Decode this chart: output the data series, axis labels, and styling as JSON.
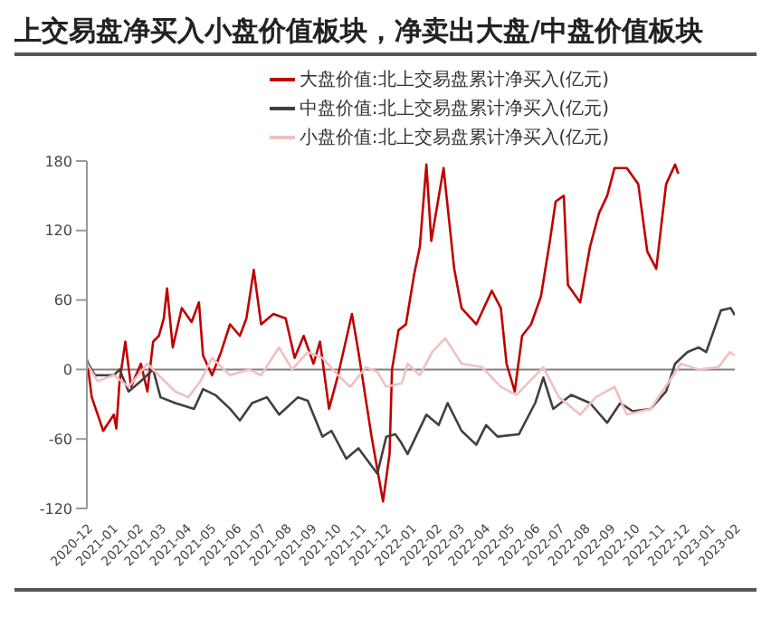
{
  "chart_data": {
    "type": "line",
    "title": "上交易盘净买入小盘价值板块，净卖出大盘/中盘价值板块",
    "legend": "top",
    "grid": false,
    "marker": "none",
    "line_style": "solid",
    "xlim": [
      "2020-12-01",
      "2023-02-01"
    ],
    "xticks": [
      "2020-12",
      "2021-01",
      "2021-02",
      "2021-03",
      "2021-04",
      "2021-05",
      "2021-06",
      "2021-07",
      "2021-08",
      "2021-09",
      "2021-10",
      "2021-11",
      "2021-12",
      "2022-01",
      "2022-02",
      "2022-03",
      "2022-04",
      "2022-05",
      "2022-06",
      "2022-07",
      "2022-08",
      "2022-09",
      "2022-10",
      "2022-11",
      "2022-12",
      "2023-01",
      "2023-02"
    ],
    "ylim": [
      -120,
      180
    ],
    "yticks": [
      -120,
      -60,
      0,
      60,
      120,
      180
    ],
    "ref_lines": [
      {
        "axis": "y",
        "value": 0,
        "color": "#808080"
      }
    ],
    "series": [
      {
        "name": "大盘价值:北上交易盘累计净买入(亿元)",
        "color": "#c00000",
        "x": [
          "2020-12-01",
          "2020-12-07",
          "2020-12-21",
          "2021-01-03",
          "2021-01-06",
          "2021-01-10",
          "2021-01-17",
          "2021-01-24",
          "2021-02-05",
          "2021-02-13",
          "2021-02-20",
          "2021-02-27",
          "2021-03-05",
          "2021-03-09",
          "2021-03-16",
          "2021-03-27",
          "2021-04-08",
          "2021-04-17",
          "2021-04-22",
          "2021-05-03",
          "2021-05-14",
          "2021-05-25",
          "2021-06-06",
          "2021-06-14",
          "2021-06-23",
          "2021-07-02",
          "2021-07-17",
          "2021-08-01",
          "2021-08-12",
          "2021-08-23",
          "2021-09-04",
          "2021-09-12",
          "2021-09-23",
          "2021-10-04",
          "2021-10-21",
          "2021-10-29",
          "2021-11-14",
          "2021-11-28",
          "2021-12-06",
          "2021-12-09",
          "2021-12-17",
          "2021-12-26",
          "2022-01-05",
          "2022-01-12",
          "2022-01-20",
          "2022-01-26",
          "2022-02-10",
          "2022-02-23",
          "2022-03-04",
          "2022-03-22",
          "2022-04-10",
          "2022-04-21",
          "2022-04-28",
          "2022-05-08",
          "2022-05-17",
          "2022-05-28",
          "2022-06-09",
          "2022-06-20",
          "2022-06-27",
          "2022-07-07",
          "2022-07-12",
          "2022-07-27",
          "2022-08-08",
          "2022-08-19",
          "2022-08-29",
          "2022-09-07",
          "2022-09-22",
          "2022-10-06",
          "2022-10-17",
          "2022-10-28",
          "2022-11-09",
          "2022-11-20",
          "2022-11-24"
        ],
        "values": [
          9,
          -24,
          -53,
          -39,
          -51,
          -10,
          24,
          -15,
          5,
          -19,
          24,
          29,
          44,
          70,
          19,
          53,
          41,
          58,
          12,
          -5,
          15,
          39,
          29,
          44,
          86,
          39,
          48,
          44,
          10,
          29,
          5,
          24,
          -34,
          -5,
          48,
          15,
          -58,
          -114,
          -73,
          0,
          34,
          39,
          82,
          106,
          177,
          111,
          174,
          87,
          53,
          39,
          68,
          53,
          5,
          -19,
          29,
          39,
          63,
          111,
          145,
          150,
          73,
          58,
          106,
          135,
          150,
          174,
          174,
          160,
          102,
          87,
          160,
          177,
          169
        ]
      },
      {
        "name": "中盘价值:北上交易盘累计净买入(亿元)",
        "color": "#404040",
        "x": [
          "2020-12-01",
          "2020-12-11",
          "2021-01-03",
          "2021-01-10",
          "2021-01-21",
          "2021-02-05",
          "2021-02-20",
          "2021-03-01",
          "2021-03-19",
          "2021-04-11",
          "2021-04-22",
          "2021-05-07",
          "2021-05-25",
          "2021-06-06",
          "2021-06-21",
          "2021-07-09",
          "2021-07-24",
          "2021-08-16",
          "2021-08-28",
          "2021-09-15",
          "2021-09-26",
          "2021-10-14",
          "2021-10-29",
          "2021-11-21",
          "2021-12-02",
          "2021-12-13",
          "2021-12-20",
          "2021-12-28",
          "2022-01-20",
          "2022-02-04",
          "2022-02-15",
          "2022-03-04",
          "2022-03-22",
          "2022-04-03",
          "2022-04-17",
          "2022-05-13",
          "2022-06-02",
          "2022-06-12",
          "2022-06-24",
          "2022-07-16",
          "2022-08-08",
          "2022-08-29",
          "2022-09-14",
          "2022-09-29",
          "2022-10-21",
          "2022-11-09",
          "2022-11-20",
          "2022-12-05",
          "2022-12-19",
          "2022-12-28",
          "2023-01-15",
          "2023-01-27",
          "2023-02-01"
        ],
        "values": [
          7,
          -5,
          -5,
          0,
          -19,
          -10,
          0,
          -24,
          -29,
          -34,
          -17,
          -22,
          -34,
          -44,
          -29,
          -24,
          -39,
          -24,
          -27,
          -58,
          -53,
          -77,
          -68,
          -90,
          -58,
          -56,
          -63,
          -73,
          -39,
          -48,
          -29,
          -53,
          -65,
          -48,
          -58,
          -56,
          -29,
          -7,
          -34,
          -22,
          -29,
          -46,
          -29,
          -36,
          -34,
          -19,
          5,
          15,
          19,
          15,
          51,
          53,
          47
        ]
      },
      {
        "name": "小盘价值:北上交易盘累计净买入(亿元)",
        "color": "#f0c0c0",
        "x": [
          "2020-12-01",
          "2020-12-14",
          "2021-01-03",
          "2021-01-21",
          "2021-02-13",
          "2021-02-27",
          "2021-03-19",
          "2021-04-04",
          "2021-04-19",
          "2021-05-03",
          "2021-05-25",
          "2021-06-17",
          "2021-07-02",
          "2021-07-24",
          "2021-08-09",
          "2021-08-28",
          "2021-09-15",
          "2021-10-04",
          "2021-10-19",
          "2021-11-07",
          "2021-11-21",
          "2021-12-02",
          "2021-12-21",
          "2021-12-28",
          "2022-01-12",
          "2022-01-27",
          "2022-02-12",
          "2022-03-04",
          "2022-03-29",
          "2022-04-21",
          "2022-05-10",
          "2022-06-12",
          "2022-07-01",
          "2022-07-27",
          "2022-08-15",
          "2022-09-07",
          "2022-09-22",
          "2022-10-21",
          "2022-11-13",
          "2022-11-27",
          "2022-12-19",
          "2023-01-12",
          "2023-01-26",
          "2023-02-01"
        ],
        "values": [
          5,
          -10,
          -5,
          -15,
          5,
          -5,
          -19,
          -24,
          -10,
          10,
          -5,
          0,
          -5,
          19,
          0,
          15,
          10,
          -5,
          -15,
          2,
          -2,
          -15,
          -12,
          5,
          -5,
          15,
          27,
          5,
          2,
          -15,
          -22,
          2,
          -24,
          -39,
          -24,
          -15,
          -39,
          -34,
          -10,
          5,
          0,
          2,
          15,
          12
        ]
      }
    ]
  }
}
